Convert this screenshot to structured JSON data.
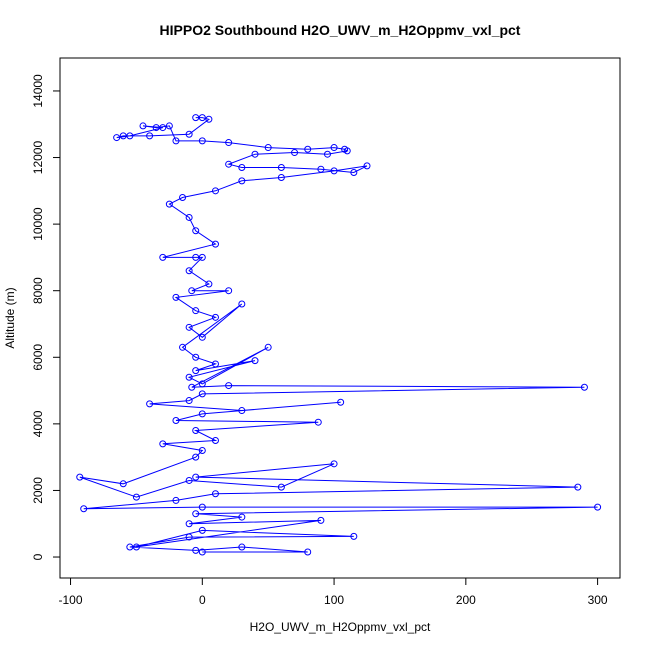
{
  "chart_data": {
    "type": "line",
    "title": "HIPPO2 Southbound H2O_UWV_m_H2Oppmv_vxl_pct",
    "x_label": "H2O_UWV_m_H2Oppmv_vxl_pct",
    "y_label": "Altitude (m)",
    "color": "#0000ff",
    "markers": true,
    "grid": false,
    "xlim": [
      -108,
      317
    ],
    "ylim": [
      -630,
      14990
    ],
    "xticks": [
      -100,
      0,
      100,
      200,
      300
    ],
    "yticks": [
      0,
      2000,
      4000,
      6000,
      8000,
      10000,
      12000,
      14000
    ],
    "x": [
      -5,
      0,
      5,
      -10,
      -40,
      -60,
      -65,
      -55,
      -30,
      -45,
      -35,
      -25,
      -20,
      0,
      20,
      50,
      80,
      100,
      108,
      110,
      95,
      70,
      40,
      20,
      30,
      60,
      90,
      115,
      125,
      100,
      60,
      30,
      10,
      -15,
      -25,
      -10,
      -5,
      10,
      -30,
      -5,
      0,
      -10,
      5,
      -8,
      20,
      -20,
      -5,
      10,
      -10,
      0,
      30,
      -15,
      -5,
      10,
      -5,
      40,
      -10,
      0,
      50,
      -8,
      20,
      290,
      0,
      -10,
      -40,
      30,
      105,
      0,
      -20,
      88,
      -5,
      10,
      -30,
      0,
      -5,
      -60,
      -93,
      -50,
      -10,
      60,
      100,
      -5,
      285,
      10,
      -20,
      -90,
      0,
      300,
      -5,
      30,
      -10,
      90,
      -50,
      0,
      115,
      -10,
      -55,
      -5,
      30,
      80,
      0
    ],
    "values": [
      13200,
      13200,
      13150,
      12700,
      12650,
      12650,
      12600,
      12650,
      12900,
      12950,
      12900,
      12950,
      12500,
      12500,
      12450,
      12300,
      12250,
      12300,
      12250,
      12200,
      12100,
      12150,
      12100,
      11800,
      11700,
      11700,
      11650,
      11550,
      11750,
      11600,
      11400,
      11300,
      11000,
      10800,
      10600,
      10200,
      9800,
      9400,
      9000,
      9000,
      9000,
      8600,
      8200,
      8000,
      8000,
      7800,
      7400,
      7200,
      6900,
      6600,
      7600,
      6300,
      6000,
      5800,
      5600,
      5900,
      5400,
      5200,
      6300,
      5100,
      5150,
      5100,
      4900,
      4700,
      4600,
      4400,
      4650,
      4300,
      4100,
      4050,
      3800,
      3500,
      3400,
      3200,
      3000,
      2200,
      2400,
      1800,
      2300,
      2100,
      2800,
      2400,
      2100,
      1900,
      1700,
      1450,
      1500,
      1500,
      1300,
      1200,
      1000,
      1100,
      300,
      800,
      620,
      600,
      300,
      200,
      300,
      150,
      150
    ]
  }
}
